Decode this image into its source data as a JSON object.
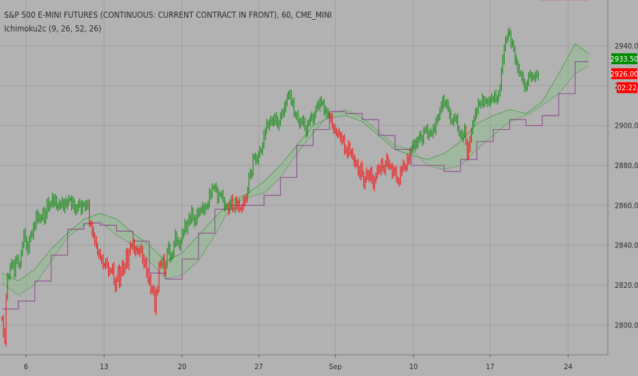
{
  "chart_data": {
    "type": "line",
    "title": "S&P 500 E-MINI FUTURES (CONTINUOUS: CURRENT CONTRACT IN FRONT), 60, CME_MINI",
    "indicator_label": "Ichimoku2c (9, 26, 52, 26)",
    "x_ticks": [
      "6",
      "13",
      "20",
      "27",
      "Sep",
      "10",
      "17",
      "24"
    ],
    "ylim": [
      2785,
      2952
    ],
    "y_ticks": [
      2800,
      2820,
      2840,
      2860,
      2880,
      2900,
      2920,
      2940
    ],
    "y_tick_labels": [
      "2800.00",
      "2820.00",
      "2840.00",
      "2860.00",
      "2880.00",
      "2900.00",
      "2920.00",
      "2940.00"
    ],
    "grid": true,
    "price_tags": [
      {
        "label": "2933.50",
        "value": 2933.5,
        "color": "#008a00"
      },
      {
        "label": "2926.00",
        "value": 2926.0,
        "color": "#ff0000"
      },
      {
        "label": "02:22",
        "value": 2919.0,
        "color": "#ff0000"
      }
    ],
    "close_t": [
      0,
      2,
      4,
      6,
      8,
      10,
      12,
      14,
      16,
      18,
      20,
      22,
      24,
      26,
      28,
      30,
      32,
      34,
      36,
      38,
      40,
      42,
      44,
      46,
      48,
      50,
      52,
      54,
      56,
      58,
      60,
      62,
      64,
      66,
      68,
      70,
      72,
      74,
      76,
      78,
      80,
      82,
      84,
      86,
      88,
      90,
      92,
      94,
      96,
      98,
      100,
      102,
      104,
      106,
      108,
      110,
      112,
      114,
      116,
      118,
      120,
      122,
      124,
      126,
      128,
      130,
      132,
      134,
      136,
      138,
      140,
      142,
      144,
      146,
      148,
      150,
      152,
      154,
      156,
      158,
      160,
      162,
      164,
      166,
      168,
      170,
      172,
      174,
      176,
      178,
      180,
      182,
      184,
      186,
      188,
      190,
      192,
      194,
      196,
      198,
      200,
      202,
      204,
      206,
      208,
      210,
      212,
      214,
      216,
      218,
      220,
      222,
      224,
      226,
      228,
      230,
      232,
      234,
      236,
      238,
      240,
      242,
      244,
      246,
      248,
      250,
      252,
      254,
      256,
      258,
      260,
      262,
      264,
      266,
      268,
      270,
      272,
      274,
      276,
      278,
      280,
      282,
      284,
      286,
      288,
      290,
      292,
      294,
      296,
      298,
      300,
      302,
      304,
      306,
      308,
      310,
      312,
      314,
      316,
      318,
      320,
      322,
      324,
      326,
      328,
      330,
      332,
      334,
      336,
      338,
      340,
      342,
      344,
      346,
      348,
      350,
      352,
      354,
      356,
      358,
      360,
      362,
      364,
      366,
      368,
      370,
      372,
      374,
      376,
      378,
      380,
      382,
      384,
      386,
      388,
      390,
      392,
      394,
      396,
      398,
      400,
      402,
      404,
      406,
      408,
      410,
      412,
      414,
      416,
      418,
      420,
      422,
      424,
      426,
      428,
      430,
      432,
      434,
      436,
      438,
      440,
      442,
      444,
      446,
      448,
      450,
      452,
      454,
      456,
      458,
      460,
      462,
      464,
      466,
      468,
      470,
      472,
      474,
      476,
      478,
      480,
      482,
      484,
      486,
      488,
      490,
      492,
      494,
      496,
      498,
      500,
      502,
      504,
      506,
      508,
      510,
      512,
      514,
      516,
      518,
      520,
      522,
      524,
      526,
      528,
      530,
      532,
      534,
      536,
      538,
      540,
      542,
      544,
      546,
      548,
      550,
      552,
      554,
      556,
      558,
      560,
      562,
      564,
      566,
      568,
      570,
      572,
      574,
      576,
      578,
      580,
      582,
      584,
      586,
      588,
      590,
      592,
      594,
      596,
      598,
      600,
      602,
      604,
      606,
      608,
      610,
      612,
      614,
      616,
      618,
      620,
      622,
      624,
      626,
      628,
      630,
      632,
      634,
      636,
      638,
      640,
      642,
      644,
      646,
      648,
      650,
      652,
      654,
      656,
      658,
      660,
      662,
      664,
      666,
      668,
      670,
      672,
      674,
      676,
      678,
      680,
      682,
      684,
      686,
      688,
      690,
      692,
      694,
      696,
      698,
      700,
      702,
      704,
      706,
      708,
      710,
      712,
      714,
      716,
      718,
      720,
      722,
      724,
      726,
      728,
      730,
      732,
      734,
      736,
      738,
      740,
      742,
      744,
      746,
      748,
      750,
      752,
      754,
      756,
      758,
      760,
      762,
      764,
      766,
      768,
      770,
      772,
      774,
      776,
      778,
      780,
      782,
      784,
      786,
      788,
      790,
      792,
      794,
      796,
      798,
      800,
      802,
      804,
      806,
      808,
      810,
      812,
      814,
      816,
      818,
      820,
      822,
      824,
      826,
      828,
      830,
      832,
      834,
      836,
      838,
      840,
      842,
      844,
      846,
      848,
      850,
      852,
      854,
      856,
      858,
      860
    ],
    "close": [
      2803.1,
      2795.9,
      2791.7,
      2814.3,
      2824.0,
      2824.6,
      2829.0,
      2830.7,
      2830.7,
      2825.2,
      2833.3,
      2832.8,
      2830.3,
      2830.5,
      2835.5,
      2840.6,
      2846.0,
      2843.0,
      2839.8,
      2836.9,
      2843.5,
      2845.1,
      2845.2,
      2849.8,
      2849.0,
      2856.1,
      2852.9,
      2854.0,
      2853.4,
      2853.4,
      2857.5,
      2852.3,
      2855.7,
      2861.9,
      2858.4,
      2860.7,
      2860.8,
      2863.8,
      2861.2,
      2863.6,
      2859.1,
      2859.3,
      2860.6,
      2860.5,
      2862.1,
      2858.3,
      2861.5,
      2860.3,
      2861.7,
      2863.1,
      2863.0,
      2859.6,
      2861.9,
      2858.6,
      2856.8,
      2859.3,
      2860.3,
      2861.0,
      2857.6,
      2860.2,
      2860.6,
      2859.0,
      2860.2,
      2861.0,
      2851.2,
      2850.4,
      2846.7,
      2844.8,
      2842.3,
      2840.1,
      2836.0,
      2835.6,
      2833.8,
      2833.1,
      2829.8,
      2830.0,
      2831.4,
      2830.1,
      2826.6,
      2827.0,
      2827.4,
      2828.9,
      2821.8,
      2818.8,
      2822.6,
      2828.5,
      2820.6,
      2826.8,
      2830.6,
      2826.7,
      2830.0,
      2836.1,
      2830.1,
      2836.7,
      2839.8,
      2839.3,
      2840.8,
      2836.8,
      2838.0,
      2837.5,
      2836.2,
      2837.8,
      2838.2,
      2833.1,
      2830.0,
      2832.1,
      2826.1,
      2822.4,
      2823.5,
      2817.1,
      2818.3,
      2816.7,
      2807.7,
      2816.6,
      2817.4,
      2830.4,
      2830.3,
      2830.7,
      2833.4,
      2826.3,
      2830.5,
      2836.8,
      2839.5,
      2833.7,
      2834.0,
      2836.0,
      2840.3,
      2845.5,
      2842.2,
      2841.6,
      2839.1,
      2842.0,
      2845.7,
      2846.8,
      2851.0,
      2847.5,
      2851.0,
      2853.8,
      2852.6,
      2857.6,
      2853.2,
      2851.2,
      2852.8,
      2856.9,
      2855.5,
      2857.6,
      2857.5,
      2859.1,
      2857.3,
      2859.2,
      2859.6,
      2860.3,
      2866.2,
      2865.3,
      2868.8,
      2869.0,
      2868.9,
      2867.8,
      2863.1,
      2865.3,
      2865.5,
      2865.3,
      2862.8,
      2859.4,
      2859.7,
      2859.5,
      2857.3,
      2860.4,
      2863.4,
      2858.3,
      2858.1,
      2862.1,
      2859.4,
      2861.2,
      2858.3,
      2858.3,
      2859.1,
      2862.1,
      2863.3,
      2862.9,
      2868.1,
      2874.7,
      2875.8,
      2876.3,
      2883.8,
      2884.6,
      2882.4,
      2882.7,
      2885.6,
      2887.7,
      2887.2,
      2889.8,
      2895.1,
      2897.5,
      2901.0,
      2899.7,
      2901.6,
      2902.3,
      2902.8,
      2901.4,
      2905.0,
      2902.3,
      2899.9,
      2901.5,
      2904.3,
      2906.9,
      2906.0,
      2909.2,
      2911.5,
      2914.2,
      2916.2,
      2915.2,
      2911.7,
      2912.0,
      2906.1,
      2905.0,
      2905.1,
      2902.4,
      2900.8,
      2901.5,
      2903.4,
      2901.5,
      2898.7,
      2896.5,
      2900.5,
      2902.3,
      2903.7,
      2904.5,
      2902.8,
      2904.9,
      2908.9,
      2910.2,
      2909.6,
      2912.6,
      2911.1,
      2911.4,
      2907.0,
      2907.6,
      2906.4,
      2905.4,
      2904.6,
      2903.4,
      2899.8,
      2898.5,
      2897.8,
      2895.9,
      2896.1,
      2895.6,
      2894.5,
      2892.1,
      2893.8,
      2887.4,
      2887.8,
      2885.9,
      2890.4,
      2886.3,
      2886.2,
      2884.3,
      2882.2,
      2880.3,
      2881.5,
      2877.1,
      2875.0,
      2880.0,
      2876.1,
      2870.0,
      2872.8,
      2876.4,
      2875.3,
      2873.4,
      2877.7,
      2873.1,
      2869.7,
      2873.0,
      2874.3,
      2878.9,
      2877.4,
      2877.5,
      2881.7,
      2879.0,
      2877.2,
      2880.7,
      2883.6,
      2880.8,
      2879.4,
      2879.6,
      2875.4,
      2877.5,
      2877.6,
      2873.5,
      2871.8,
      2871.7,
      2877.0,
      2878.4,
      2880.9,
      2878.8,
      2878.8,
      2883.6,
      2882.8,
      2886.4,
      2888.7,
      2890.5,
      2889.6,
      2891.8,
      2890.1,
      2893.6,
      2895.0,
      2893.9,
      2892.3,
      2896.9,
      2898.2,
      2898.3,
      2895.0,
      2896.0,
      2896.7,
      2895.8,
      2898.6,
      2897.8,
      2902.4,
      2903.2,
      2904.9,
      2907.4,
      2909.6,
      2913.3,
      2910.5,
      2911.4,
      2910.5,
      2908.3,
      2905.8,
      2902.4,
      2901.7,
      2903.7,
      2903.4,
      2903.9,
      2898.8,
      2895.7,
      2895.7,
      2894.1,
      2895.7,
      2898.9,
      2891.3,
      2884.5,
      2889.1,
      2893.3,
      2896.7,
      2901.4,
      2903.3,
      2906.2,
      2907.5,
      2911.4,
      2910.6,
      2910.9,
      2913.5,
      2911.3,
      2912.5,
      2912.0,
      2911.4,
      2912.0,
      2913.0,
      2913.9,
      2912.9,
      2915.4,
      2913.2,
      2913.7,
      2915.7,
      2919.6,
      2927.3,
      2933.1,
      2939.2,
      2942.3,
      2944.4,
      2946.6,
      2946.3,
      2941.2,
      2941.5,
      2938.1,
      2932.9,
      2931.6,
      2928.8,
      2926.4,
      2925.9,
      2924.5,
      2922.1,
      2919.6,
      2918.7,
      2921.9,
      2925.0,
      2925.5,
      2924.3,
      2924.5,
      2923.7,
      2925.3,
      2925.1,
      2925.7
    ],
    "span_t": [
      0,
      24,
      48,
      72,
      96,
      120,
      144,
      168,
      192,
      216,
      240,
      264,
      288,
      312,
      336,
      360,
      384,
      408,
      432,
      456,
      480,
      504,
      528,
      552,
      576,
      600,
      624,
      648,
      672,
      696,
      720,
      744,
      768,
      792,
      816,
      840,
      860
    ],
    "span_a": [
      2826.0,
      2822.0,
      2828.0,
      2838.0,
      2846.0,
      2853.0,
      2856.0,
      2853.0,
      2846.0,
      2840.0,
      2832.0,
      2836.0,
      2845.0,
      2854.0,
      2862.0,
      2866.0,
      2872.0,
      2880.0,
      2890.0,
      2900.0,
      2904.0,
      2905.0,
      2902.0,
      2895.0,
      2888.0,
      2885.0,
      2883.0,
      2886.0,
      2892.0,
      2901.0,
      2905.0,
      2908.0,
      2906.0,
      2912.0,
      2926.0,
      2941.0,
      2936.0
    ],
    "span_b": [
      2821.0,
      2815.0,
      2820.0,
      2832.0,
      2844.0,
      2850.0,
      2852.0,
      2845.0,
      2840.0,
      2832.0,
      2823.0,
      2825.0,
      2832.0,
      2845.0,
      2860.0,
      2864.0,
      2866.0,
      2874.0,
      2886.0,
      2896.0,
      2906.0,
      2908.0,
      2904.0,
      2897.0,
      2890.0,
      2888.0,
      2880.0,
      2878.0,
      2880.0,
      2888.0,
      2895.0,
      2902.0,
      2905.0,
      2910.0,
      2916.0,
      2926.0,
      2930.0
    ],
    "base_t": [
      0,
      24,
      48,
      72,
      96,
      120,
      144,
      168,
      192,
      216,
      240,
      264,
      288,
      312,
      336,
      360,
      384,
      408,
      432,
      456,
      480,
      504,
      528,
      552,
      576,
      600,
      624,
      648,
      672,
      696,
      720,
      744,
      768,
      792,
      816,
      840,
      860
    ],
    "base": [
      2808.0,
      2812.0,
      2822.0,
      2835.0,
      2848.0,
      2851.0,
      2850.0,
      2847.0,
      2842.0,
      2826.0,
      2823.0,
      2833.0,
      2846.0,
      2858.0,
      2860.0,
      2860.0,
      2865.0,
      2874.0,
      2890.0,
      2898.0,
      2907.0,
      2906.0,
      2903.0,
      2895.0,
      2888.0,
      2880.0,
      2880.0,
      2877.0,
      2883.0,
      2892.0,
      2898.0,
      2903.0,
      2900.0,
      2905.0,
      2916.0,
      2932.0,
      2932.0
    ]
  }
}
